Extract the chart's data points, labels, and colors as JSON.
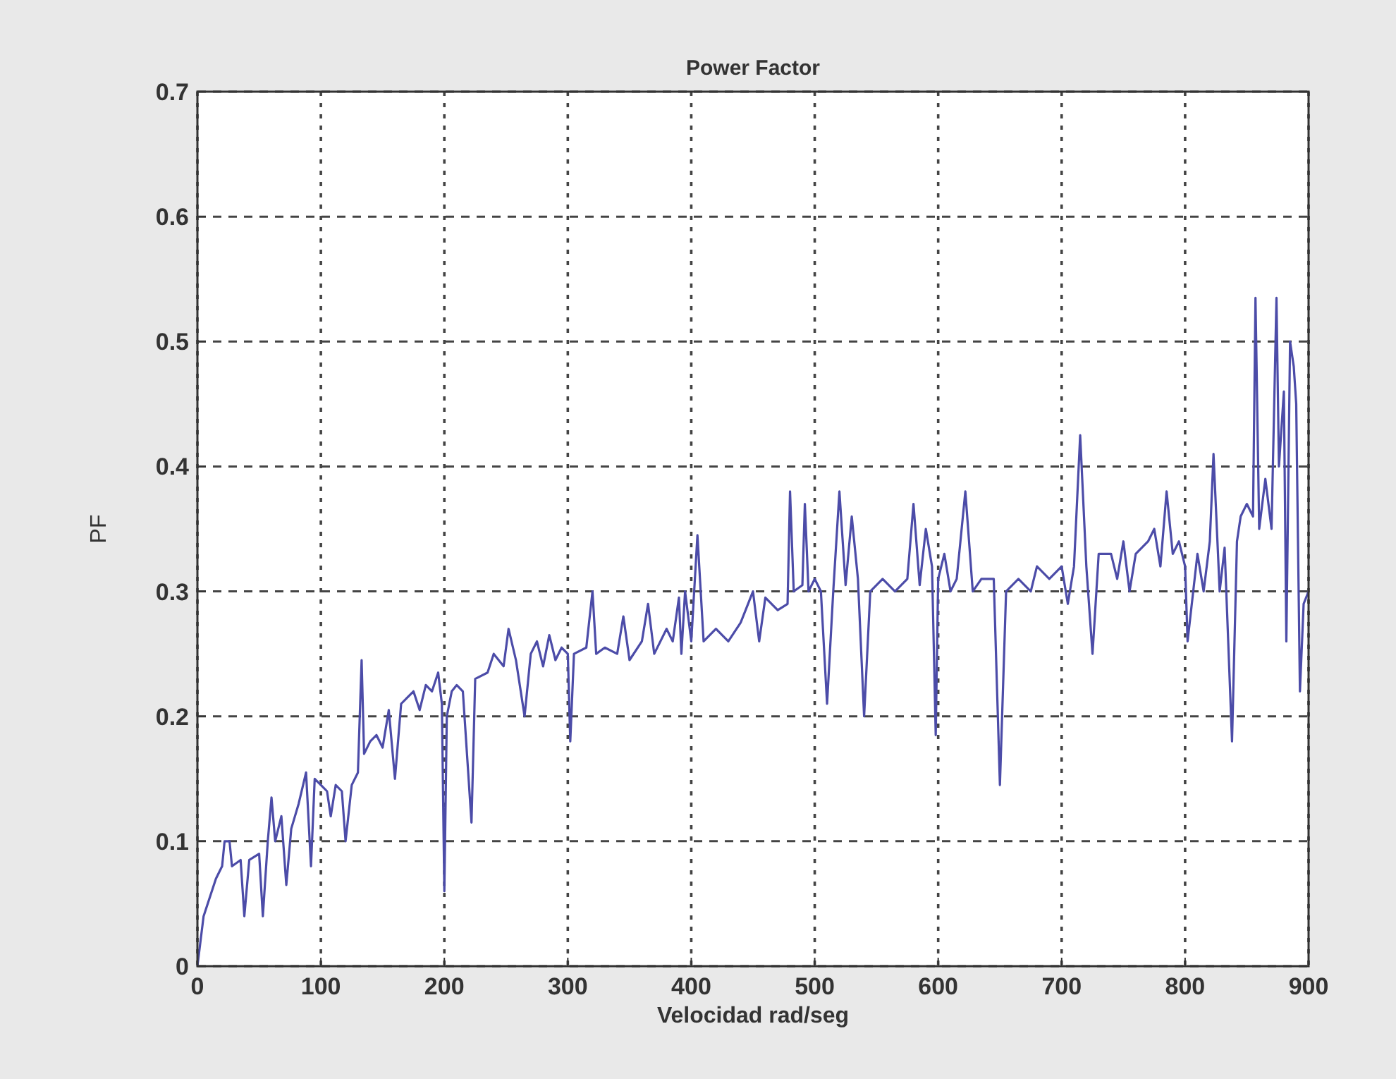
{
  "chart_data": {
    "type": "line",
    "title": "Power Factor",
    "xlabel": "Velocidad rad/seg",
    "ylabel": "PF",
    "xlim": [
      0,
      900
    ],
    "ylim": [
      0,
      0.7
    ],
    "xticks": [
      0,
      100,
      200,
      300,
      400,
      500,
      600,
      700,
      800,
      900
    ],
    "yticks": [
      0,
      0.1,
      0.2,
      0.3,
      0.4,
      0.5,
      0.6,
      0.7
    ],
    "grid": true,
    "line_style": "solid",
    "marker": "none",
    "series": [
      {
        "color": "#4c4ca8",
        "x": [
          0,
          5,
          15,
          20,
          22,
          26,
          28,
          35,
          38,
          42,
          50,
          53,
          57,
          60,
          63,
          68,
          72,
          76,
          82,
          88,
          92,
          95,
          100,
          105,
          108,
          112,
          117,
          120,
          125,
          130,
          133,
          135,
          140,
          145,
          150,
          155,
          160,
          165,
          170,
          175,
          180,
          185,
          190,
          195,
          198,
          200,
          202,
          206,
          210,
          215,
          222,
          225,
          235,
          240,
          248,
          252,
          258,
          265,
          270,
          275,
          280,
          285,
          290,
          295,
          300,
          302,
          305,
          315,
          320,
          323,
          330,
          340,
          345,
          350,
          360,
          365,
          370,
          380,
          385,
          390,
          392,
          395,
          400,
          405,
          410,
          420,
          430,
          440,
          450,
          455,
          460,
          470,
          478,
          480,
          483,
          490,
          492,
          495,
          500,
          505,
          510,
          515,
          520,
          525,
          530,
          535,
          540,
          545,
          555,
          565,
          575,
          580,
          585,
          590,
          595,
          598,
          600,
          605,
          610,
          615,
          622,
          628,
          635,
          645,
          650,
          655,
          665,
          675,
          680,
          690,
          700,
          705,
          710,
          715,
          720,
          725,
          730,
          740,
          745,
          750,
          755,
          760,
          770,
          775,
          780,
          785,
          790,
          795,
          800,
          802,
          810,
          815,
          820,
          823,
          828,
          832,
          838,
          842,
          845,
          850,
          855,
          857,
          860,
          865,
          870,
          874,
          876,
          880,
          882,
          885,
          888,
          890,
          893,
          896,
          900
        ],
        "values": [
          0,
          0.04,
          0.07,
          0.08,
          0.1,
          0.1,
          0.08,
          0.085,
          0.04,
          0.085,
          0.09,
          0.04,
          0.1,
          0.135,
          0.1,
          0.12,
          0.065,
          0.11,
          0.13,
          0.155,
          0.08,
          0.15,
          0.145,
          0.14,
          0.12,
          0.145,
          0.14,
          0.1,
          0.145,
          0.155,
          0.245,
          0.17,
          0.18,
          0.185,
          0.175,
          0.205,
          0.15,
          0.21,
          0.215,
          0.22,
          0.205,
          0.225,
          0.22,
          0.235,
          0.21,
          0.06,
          0.2,
          0.22,
          0.225,
          0.22,
          0.115,
          0.23,
          0.235,
          0.25,
          0.24,
          0.27,
          0.245,
          0.2,
          0.25,
          0.26,
          0.24,
          0.265,
          0.245,
          0.255,
          0.25,
          0.18,
          0.25,
          0.255,
          0.3,
          0.25,
          0.255,
          0.25,
          0.28,
          0.245,
          0.26,
          0.29,
          0.25,
          0.27,
          0.26,
          0.295,
          0.25,
          0.3,
          0.26,
          0.345,
          0.26,
          0.27,
          0.26,
          0.275,
          0.3,
          0.26,
          0.295,
          0.285,
          0.29,
          0.38,
          0.3,
          0.305,
          0.37,
          0.3,
          0.31,
          0.3,
          0.21,
          0.3,
          0.38,
          0.305,
          0.36,
          0.31,
          0.2,
          0.3,
          0.31,
          0.3,
          0.31,
          0.37,
          0.305,
          0.35,
          0.32,
          0.185,
          0.31,
          0.33,
          0.3,
          0.31,
          0.38,
          0.3,
          0.31,
          0.31,
          0.145,
          0.3,
          0.31,
          0.3,
          0.32,
          0.31,
          0.32,
          0.29,
          0.32,
          0.425,
          0.32,
          0.25,
          0.33,
          0.33,
          0.31,
          0.34,
          0.3,
          0.33,
          0.34,
          0.35,
          0.32,
          0.38,
          0.33,
          0.34,
          0.32,
          0.26,
          0.33,
          0.3,
          0.34,
          0.41,
          0.3,
          0.335,
          0.18,
          0.34,
          0.36,
          0.37,
          0.36,
          0.535,
          0.35,
          0.39,
          0.35,
          0.535,
          0.4,
          0.46,
          0.26,
          0.5,
          0.48,
          0.45,
          0.22,
          0.29,
          0.3
        ]
      }
    ]
  }
}
